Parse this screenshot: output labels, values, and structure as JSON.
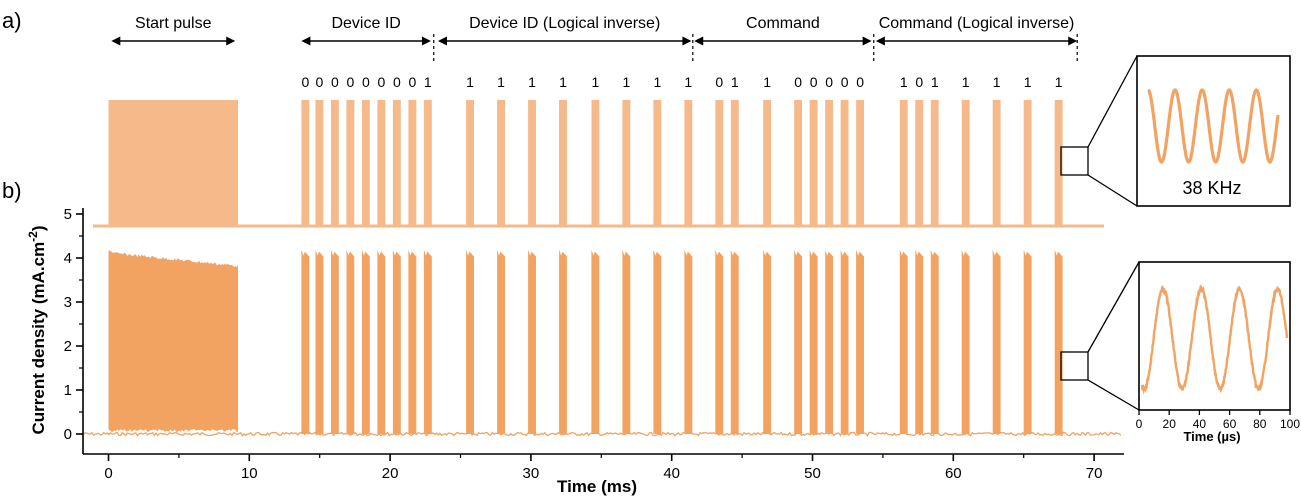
{
  "colors": {
    "pulse": "#f5b98a",
    "measured": "#f2a261",
    "axis": "#000000"
  },
  "panels": {
    "a": "a)",
    "b": "b)"
  },
  "segments": [
    {
      "label": "Start pulse"
    },
    {
      "label": "Device ID"
    },
    {
      "label": "Device ID (Logical inverse)"
    },
    {
      "label": "Command"
    },
    {
      "label": "Command (Logical inverse)"
    }
  ],
  "bits": [
    "0",
    "0",
    "0",
    "0",
    "0",
    "0",
    "0",
    "0",
    "1",
    "1",
    "1",
    "1",
    "1",
    "1",
    "1",
    "1",
    "1",
    "0",
    "1",
    "1",
    "0",
    "0",
    "0",
    "0",
    "0",
    "1",
    "0",
    "1",
    "1",
    "1",
    "1",
    "1"
  ],
  "inset_a": {
    "label": "38 KHz"
  },
  "chart_data": {
    "type": "line",
    "xlabel": "Time (ms)",
    "ylabel": "Current density (mA.cm",
    "ylabel_sup": "-2",
    "ylabel_close": ")",
    "xlim": [
      -2,
      72
    ],
    "ylim": [
      -0.2,
      5
    ],
    "xticks": [
      "0",
      "10",
      "20",
      "30",
      "40",
      "50",
      "60",
      "70"
    ],
    "yticks": [
      "0",
      "1",
      "2",
      "3",
      "4",
      "5"
    ],
    "start_pulse_ms": [
      0.0,
      9.2
    ],
    "pulse_starts_ms": [
      13.7,
      14.7,
      15.8,
      16.9,
      18.0,
      19.1,
      20.2,
      21.3,
      22.4,
      25.4,
      27.6,
      29.8,
      32.0,
      34.3,
      36.5,
      38.7,
      40.9,
      43.1,
      44.2,
      46.5,
      48.7,
      49.8,
      50.9,
      52.0,
      53.1,
      56.2,
      57.3,
      58.4,
      60.6,
      62.8,
      65.0,
      67.2
    ],
    "pulse_width_ms": 0.56,
    "peak_current": 4.1,
    "baseline_current": 0.0,
    "inset": {
      "xlabel": "Time (µs)",
      "xlim": [
        0,
        100
      ],
      "ylim": [
        0,
        1
      ],
      "xticks": [
        "0",
        "20",
        "40",
        "60",
        "80",
        "100"
      ],
      "carrier_khz": 38
    }
  }
}
